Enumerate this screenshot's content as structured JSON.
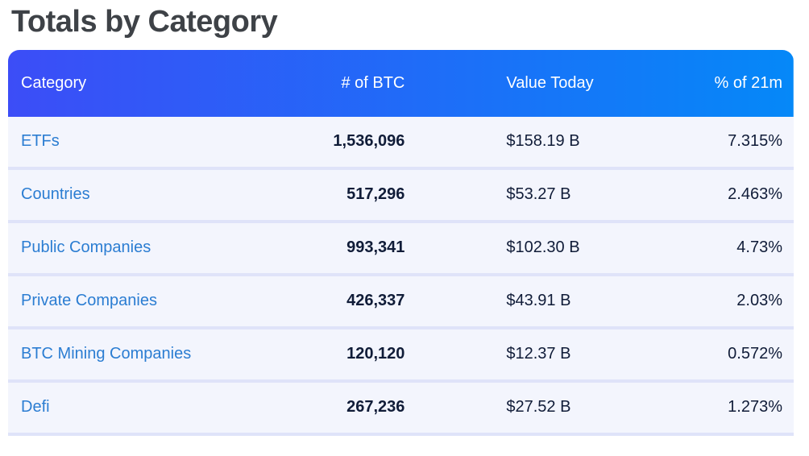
{
  "chart_data": {
    "type": "table",
    "title": "Totals by Category",
    "columns": [
      "Category",
      "# of BTC",
      "Value Today",
      "% of 21m"
    ],
    "rows": [
      {
        "category": "ETFs",
        "btc": "1,536,096",
        "value": "$158.19 B",
        "pct": "7.315%"
      },
      {
        "category": "Countries",
        "btc": "517,296",
        "value": "$53.27 B",
        "pct": "2.463%"
      },
      {
        "category": "Public Companies",
        "btc": "993,341",
        "value": "$102.30 B",
        "pct": "4.73%"
      },
      {
        "category": "Private Companies",
        "btc": "426,337",
        "value": "$43.91 B",
        "pct": "2.03%"
      },
      {
        "category": "BTC Mining Companies",
        "btc": "120,120",
        "value": "$12.37 B",
        "pct": "0.572%"
      },
      {
        "category": "Defi",
        "btc": "267,236",
        "value": "$27.52 B",
        "pct": "1.273%"
      }
    ]
  },
  "colors": {
    "header_gradient_start": "#3c4df7",
    "header_gradient_end": "#0588f8",
    "row_background": "#f3f5fd",
    "row_divider": "#dfe3f9",
    "category_link_text": "#2b7dd2",
    "value_text": "#101c38",
    "title_text": "#3e4247"
  }
}
